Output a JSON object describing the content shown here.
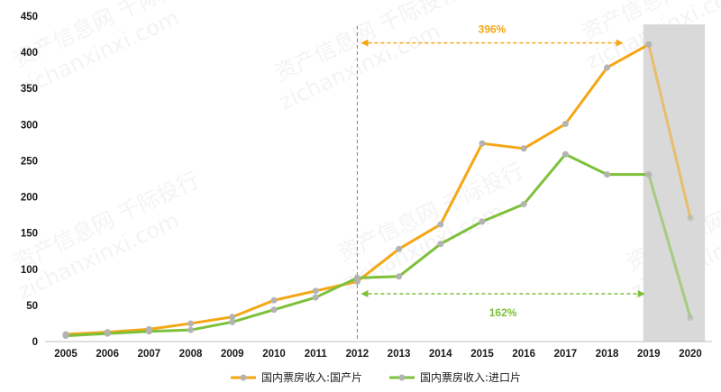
{
  "chart_data": {
    "type": "line",
    "title": "",
    "xlabel": "",
    "ylabel": "",
    "ylim": [
      0,
      450
    ],
    "yticks": [
      0,
      50,
      100,
      150,
      200,
      250,
      300,
      350,
      400,
      450
    ],
    "categories": [
      "2005",
      "2006",
      "2007",
      "2008",
      "2009",
      "2010",
      "2011",
      "2012",
      "2013",
      "2014",
      "2015",
      "2016",
      "2017",
      "2018",
      "2019",
      "2020"
    ],
    "series": [
      {
        "name": "国内票房收入:国产片",
        "color": "#f5a614",
        "values": [
          10,
          13,
          17,
          25,
          34,
          57,
          70,
          83,
          128,
          162,
          274,
          267,
          301,
          379,
          411,
          171
        ]
      },
      {
        "name": "国内票房收入:进口片",
        "color": "#7dc03a",
        "values": [
          8,
          11,
          14,
          16,
          27,
          44,
          61,
          88,
          90,
          135,
          166,
          190,
          259,
          231,
          231,
          33
        ]
      }
    ],
    "legend_position": "bottom",
    "grid": false,
    "divider_year": "2012",
    "shaded_years": [
      "2019",
      "2020"
    ],
    "annotations": [
      {
        "text": "396%",
        "color": "#f5a614",
        "from": "2012",
        "to": "2018",
        "y": 413
      },
      {
        "text": "162%",
        "color": "#7dc03a",
        "from": "2012",
        "to": "2019",
        "y": 66
      }
    ]
  },
  "watermarks": [
    "资产信息网 千际投行",
    "zichanxinxi.com"
  ]
}
